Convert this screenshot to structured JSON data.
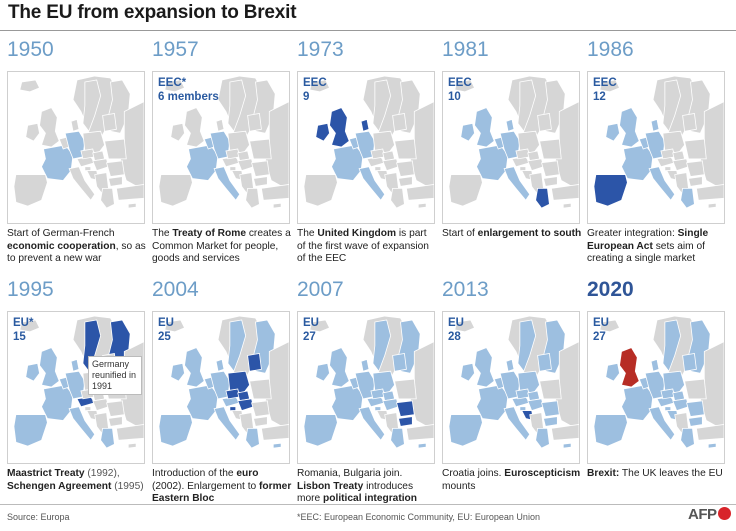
{
  "title": "The EU from expansion to Brexit",
  "colors": {
    "land_gray": "#d6d6d6",
    "member_light": "#9dbfe0",
    "member_new": "#2c55a8",
    "brexit_red": "#b72d25",
    "year_color": "#6d9dc7"
  },
  "panels": [
    {
      "year": "1950",
      "org": "",
      "count": "",
      "caption": [
        {
          "t": "Start of German-French "
        },
        {
          "t": "economic cooperation",
          "b": true
        },
        {
          "t": ", so as to prevent a new war"
        }
      ],
      "highlight": "franco-german",
      "new": []
    },
    {
      "year": "1957",
      "org": "EEC*",
      "count": "6 members",
      "caption": [
        {
          "t": "The "
        },
        {
          "t": "Treaty of Rome",
          "b": true
        },
        {
          "t": " creates a Common Market for people, goods and services"
        }
      ],
      "highlight": "eec6",
      "new": []
    },
    {
      "year": "1973",
      "org": "EEC",
      "count": "9",
      "caption": [
        {
          "t": "The "
        },
        {
          "t": "United Kingdom",
          "b": true
        },
        {
          "t": " is part of the first wave of expansion of the EEC"
        }
      ],
      "highlight": "eec9",
      "new": [
        "uk",
        "ireland",
        "denmark"
      ]
    },
    {
      "year": "1981",
      "org": "EEC",
      "count": "10",
      "caption": [
        {
          "t": "Start of "
        },
        {
          "t": "enlargement to south",
          "b": true
        }
      ],
      "highlight": "eec10",
      "new": [
        "greece"
      ]
    },
    {
      "year": "1986",
      "org": "EEC",
      "count": "12",
      "caption": [
        {
          "t": "Greater integration: "
        },
        {
          "t": "Single European Act",
          "b": true
        },
        {
          "t": " sets aim of creating a single market"
        }
      ],
      "highlight": "eec12",
      "new": [
        "iberia"
      ]
    },
    {
      "year": "1995",
      "org": "EU*",
      "count": "15",
      "caption": [
        {
          "t": "Maastrict Treaty",
          "b": true
        },
        {
          "t": " (1992), ",
          "g": true
        },
        {
          "t": "Schengen Agreement",
          "b": true
        },
        {
          "t": " (1995)",
          "g": true
        }
      ],
      "highlight": "eu15",
      "new": [
        "sweden",
        "finland",
        "austria"
      ],
      "note": "Germany reunified in 1991"
    },
    {
      "year": "2004",
      "org": "EU",
      "count": "25",
      "caption": [
        {
          "t": "Introduction of the "
        },
        {
          "t": "euro",
          "b": true
        },
        {
          "t": " (2002). Enlargement to "
        },
        {
          "t": "former Eastern Bloc",
          "b": true
        }
      ],
      "highlight": "eu25",
      "new": [
        "baltics",
        "poland",
        "czechia",
        "slovakia",
        "hungary",
        "slovenia"
      ]
    },
    {
      "year": "2007",
      "org": "EU",
      "count": "27",
      "caption": [
        {
          "t": "Romania, Bulgaria join. "
        },
        {
          "t": "Lisbon Treaty",
          "b": true
        },
        {
          "t": " introduces more "
        },
        {
          "t": "political integration",
          "b": true
        }
      ],
      "highlight": "eu27",
      "new": [
        "romania",
        "bulgaria"
      ]
    },
    {
      "year": "2013",
      "org": "EU",
      "count": "28",
      "caption": [
        {
          "t": "Croatia joins. "
        },
        {
          "t": "Euroscepticism",
          "b": true
        },
        {
          "t": " mounts"
        }
      ],
      "highlight": "eu28",
      "new": [
        "croatia"
      ]
    },
    {
      "year": "2020",
      "org": "EU",
      "count": "27",
      "caption": [
        {
          "t": "Brexit:",
          "b": true
        },
        {
          "t": " The UK leaves the EU"
        }
      ],
      "highlight": "eu27b",
      "new": [
        "uk-red"
      ],
      "year_bold": true
    }
  ],
  "footer": {
    "source": "Source: Europa",
    "footnote": "*EEC: European Economic Community, EU: European Union",
    "logo": "AFP"
  }
}
